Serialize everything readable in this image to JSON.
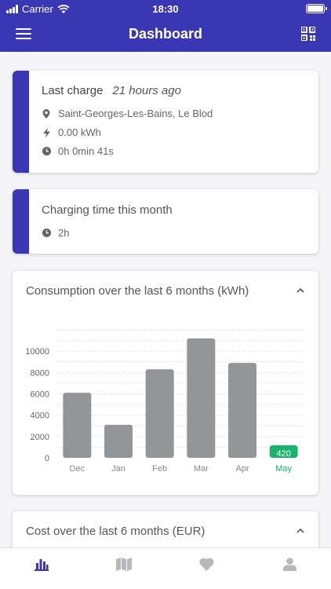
{
  "status": {
    "carrier": "Carrier",
    "time": "18:30"
  },
  "navbar": {
    "title": "Dashboard"
  },
  "last_charge": {
    "label": "Last charge",
    "ago": "21 hours ago",
    "location": "Saint-Georges-Les-Bains, Le Blod",
    "energy": "0.00 kWh",
    "duration": "0h 0min 41s"
  },
  "charging_time": {
    "label": "Charging time this month",
    "value": "2h"
  },
  "consumption": {
    "title": "Consumption over the last 6 months (kWh)"
  },
  "cost": {
    "title": "Cost over the last 6 months (EUR)"
  },
  "chart_data": {
    "type": "bar",
    "title": "Consumption over the last 6 months (kWh)",
    "categories": [
      "Dec",
      "Jan",
      "Feb",
      "Mar",
      "Apr",
      "May"
    ],
    "values": [
      6100,
      3100,
      8300,
      11200,
      8900,
      420
    ],
    "data_labels": [
      "",
      "",
      "",
      "",
      "",
      "420"
    ],
    "highlight_index": 5,
    "yticks": [
      "0",
      "2000",
      "4000",
      "6000",
      "8000",
      "10000"
    ],
    "ylim": [
      0,
      12000
    ],
    "grid": true,
    "colors": {
      "bar": "#939598",
      "highlight": "#1ab36b"
    }
  },
  "tabs": [
    "chart-icon",
    "map-icon",
    "heart-icon",
    "user-icon"
  ],
  "colors": {
    "primary": "#3a37b5",
    "accent_green": "#1ab36b"
  }
}
